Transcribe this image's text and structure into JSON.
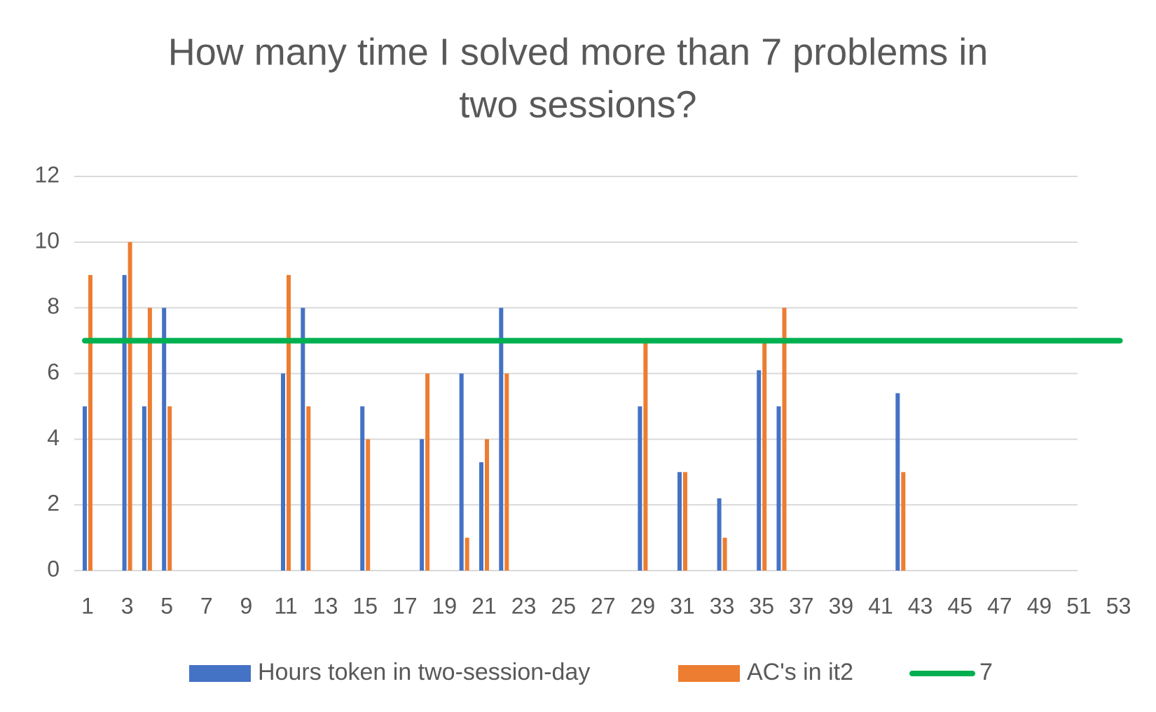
{
  "chart_data": {
    "type": "bar",
    "title_lines": [
      "How many time I solved more than 7 problems in",
      "two sessions?"
    ],
    "xlabel": "",
    "ylabel": "",
    "ylim": [
      0,
      12
    ],
    "yticks": [
      0,
      2,
      4,
      6,
      8,
      10,
      12
    ],
    "x_start": 1,
    "x_end": 53,
    "xtick_labels": [
      "1",
      "3",
      "5",
      "7",
      "9",
      "11",
      "13",
      "15",
      "17",
      "19",
      "21",
      "23",
      "25",
      "27",
      "29",
      "31",
      "33",
      "35",
      "37",
      "39",
      "41",
      "43",
      "45",
      "47",
      "49",
      "51",
      "53"
    ],
    "grid": true,
    "legend_position": "bottom",
    "series": [
      {
        "name": "Hours token in two-session-day",
        "kind": "bar",
        "color": "#4472c4",
        "points": [
          {
            "x": 1,
            "y": 5
          },
          {
            "x": 3,
            "y": 9
          },
          {
            "x": 4,
            "y": 5
          },
          {
            "x": 5,
            "y": 8
          },
          {
            "x": 11,
            "y": 6
          },
          {
            "x": 12,
            "y": 8
          },
          {
            "x": 15,
            "y": 5
          },
          {
            "x": 18,
            "y": 4
          },
          {
            "x": 20,
            "y": 6
          },
          {
            "x": 21,
            "y": 3.3
          },
          {
            "x": 22,
            "y": 8
          },
          {
            "x": 29,
            "y": 5
          },
          {
            "x": 31,
            "y": 3
          },
          {
            "x": 33,
            "y": 2.2
          },
          {
            "x": 35,
            "y": 6.1
          },
          {
            "x": 36,
            "y": 5
          },
          {
            "x": 42,
            "y": 5.4
          }
        ]
      },
      {
        "name": "AC's in it2",
        "kind": "bar",
        "color": "#ed7d31",
        "points": [
          {
            "x": 1,
            "y": 9
          },
          {
            "x": 3,
            "y": 10
          },
          {
            "x": 4,
            "y": 8
          },
          {
            "x": 5,
            "y": 5
          },
          {
            "x": 11,
            "y": 9
          },
          {
            "x": 12,
            "y": 5
          },
          {
            "x": 15,
            "y": 4
          },
          {
            "x": 18,
            "y": 6
          },
          {
            "x": 20,
            "y": 1
          },
          {
            "x": 21,
            "y": 4
          },
          {
            "x": 22,
            "y": 6
          },
          {
            "x": 29,
            "y": 7
          },
          {
            "x": 31,
            "y": 3
          },
          {
            "x": 33,
            "y": 1
          },
          {
            "x": 35,
            "y": 7
          },
          {
            "x": 36,
            "y": 8
          },
          {
            "x": 42,
            "y": 3
          }
        ]
      },
      {
        "name": "7",
        "kind": "line",
        "color": "#00b050",
        "value": 7
      }
    ]
  }
}
